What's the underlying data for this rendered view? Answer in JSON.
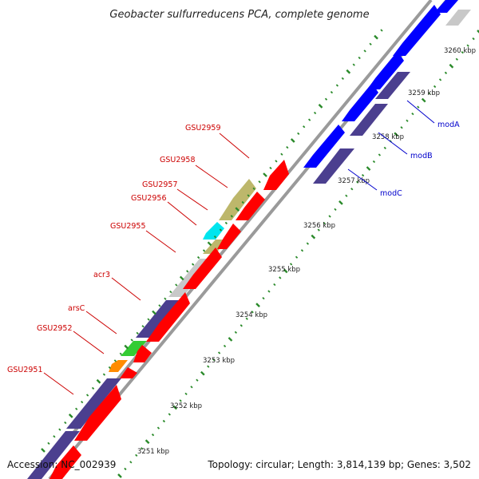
{
  "title": "Geobacter sulfurreducens PCA, complete genome",
  "footer": {
    "accession": "Accession: NC_002939",
    "summary": "Topology: circular; Length: 3,814,139 bp; Genes: 3,502"
  },
  "colors": {
    "backbone": "#8f8f8f",
    "tick_dots": "#2a8a2a",
    "forward_gene": "#0000ff",
    "reverse_gene": "#ff0000",
    "operon_gene": "#4b3f8f",
    "label_red": "#cc0000",
    "label_blue": "#0000cc"
  },
  "ticks": [
    {
      "label": "3251 kbp"
    },
    {
      "label": "3252 kbp"
    },
    {
      "label": "3253 kbp"
    },
    {
      "label": "3254 kbp"
    },
    {
      "label": "3255 kbp"
    },
    {
      "label": "3256 kbp"
    },
    {
      "label": "3257 kbp"
    },
    {
      "label": "3258 kbp"
    },
    {
      "label": "3259 kbp"
    },
    {
      "label": "3260 kbp"
    }
  ],
  "gene_labels": {
    "GSU2959": "GSU2959",
    "GSU2958": "GSU2958",
    "GSU2957": "GSU2957",
    "GSU2956": "GSU2956",
    "GSU2955": "GSU2955",
    "acr3": "acr3",
    "arsC": "arsC",
    "GSU2952": "GSU2952",
    "GSU2951": "GSU2951",
    "modA": "modA",
    "modB": "modB",
    "modC": "modC"
  }
}
